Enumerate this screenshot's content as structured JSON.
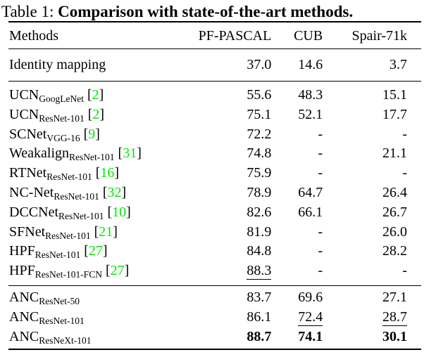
{
  "title": {
    "prefix": "Table 1: ",
    "bold_text": "Comparison with state-of-the-art methods."
  },
  "colors": {
    "citation_green": "#00e800",
    "text": "#000000",
    "background": "#ffffff"
  },
  "table": {
    "columns": [
      "Methods",
      "PF-PASCAL",
      "CUB",
      "Spair-71k"
    ],
    "sections": [
      {
        "id": "identity",
        "rows": [
          {
            "method": "Identity mapping",
            "subscript": "",
            "citation": "",
            "values": [
              "37.0",
              "14.6",
              "3.7"
            ],
            "value_styles": [
              "plain",
              "plain",
              "plain"
            ]
          }
        ]
      },
      {
        "id": "baselines",
        "rows": [
          {
            "method": "UCN",
            "subscript": "GoogLeNet",
            "citation": "2",
            "values": [
              "55.6",
              "48.3",
              "15.1"
            ],
            "value_styles": [
              "plain",
              "plain",
              "plain"
            ]
          },
          {
            "method": "UCN",
            "subscript": "ResNet-101",
            "citation": "2",
            "values": [
              "75.1",
              "52.1",
              "17.7"
            ],
            "value_styles": [
              "plain",
              "plain",
              "plain"
            ]
          },
          {
            "method": "SCNet",
            "subscript": "VGG-16",
            "citation": "9",
            "values": [
              "72.2",
              "-",
              "-"
            ],
            "value_styles": [
              "plain",
              "plain",
              "plain"
            ]
          },
          {
            "method": "Weakalign",
            "subscript": "ResNet-101",
            "citation": "31",
            "values": [
              "74.8",
              "-",
              "21.1"
            ],
            "value_styles": [
              "plain",
              "plain",
              "plain"
            ]
          },
          {
            "method": "RTNet",
            "subscript": "ResNet-101",
            "citation": "16",
            "values": [
              "75.9",
              "-",
              "-"
            ],
            "value_styles": [
              "plain",
              "plain",
              "plain"
            ]
          },
          {
            "method": "NC-Net",
            "subscript": "ResNet-101",
            "citation": "32",
            "values": [
              "78.9",
              "64.7",
              "26.4"
            ],
            "value_styles": [
              "plain",
              "plain",
              "plain"
            ]
          },
          {
            "method": "DCCNet",
            "subscript": "ResNet-101",
            "citation": "10",
            "values": [
              "82.6",
              "66.1",
              "26.7"
            ],
            "value_styles": [
              "plain",
              "plain",
              "plain"
            ]
          },
          {
            "method": "SFNet",
            "subscript": "ResNet-101",
            "citation": "21",
            "values": [
              "81.9",
              "-",
              "26.0"
            ],
            "value_styles": [
              "plain",
              "plain",
              "plain"
            ]
          },
          {
            "method": "HPF",
            "subscript": "ResNet-101",
            "citation": "27",
            "values": [
              "84.8",
              "-",
              "28.2"
            ],
            "value_styles": [
              "plain",
              "plain",
              "plain"
            ]
          },
          {
            "method": "HPF",
            "subscript": "ResNet-101-FCN",
            "citation": "27",
            "values": [
              "88.3",
              "-",
              "-"
            ],
            "value_styles": [
              "underline",
              "plain",
              "plain"
            ]
          }
        ]
      },
      {
        "id": "ours",
        "rows": [
          {
            "method": "ANC",
            "subscript": "ResNet-50",
            "citation": "",
            "values": [
              "83.7",
              "69.6",
              "27.1"
            ],
            "value_styles": [
              "plain",
              "plain",
              "plain"
            ]
          },
          {
            "method": "ANC",
            "subscript": "ResNet-101",
            "citation": "",
            "values": [
              "86.1",
              "72.4",
              "28.7"
            ],
            "value_styles": [
              "plain",
              "underline",
              "underline"
            ]
          },
          {
            "method": "ANC",
            "subscript": "ResNeXt-101",
            "citation": "",
            "values": [
              "88.7",
              "74.1",
              "30.1"
            ],
            "value_styles": [
              "bold",
              "bold",
              "bold"
            ]
          }
        ]
      }
    ]
  }
}
